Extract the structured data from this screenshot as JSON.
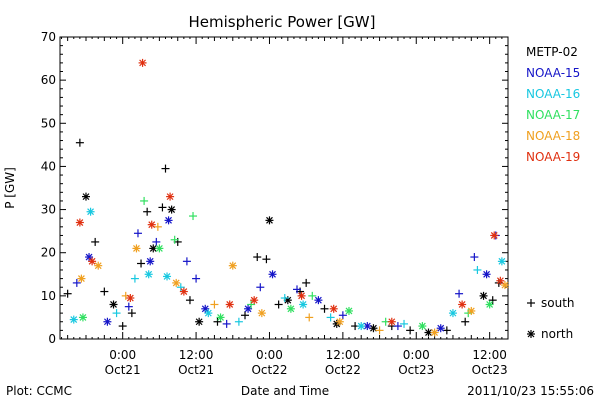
{
  "chart_data": {
    "type": "scatter",
    "title": "Hemispheric Power [GW]",
    "xlabel": "Date and Time",
    "ylabel": "P [GW]",
    "ylim": [
      0,
      70
    ],
    "yticks": [
      0,
      10,
      20,
      30,
      40,
      50,
      60,
      70
    ],
    "xlim": [
      "2011-10-20 13:45",
      "2011-10-23 15:00"
    ],
    "xticks": [
      {
        "time": "2011-10-21 00:00",
        "label1": "0:00",
        "label2": "Oct21"
      },
      {
        "time": "2011-10-21 12:00",
        "label1": "12:00",
        "label2": "Oct21"
      },
      {
        "time": "2011-10-22 00:00",
        "label1": "0:00",
        "label2": "Oct22"
      },
      {
        "time": "2011-10-22 12:00",
        "label1": "12:00",
        "label2": "Oct22"
      },
      {
        "time": "2011-10-23 00:00",
        "label1": "0:00",
        "label2": "Oct23"
      },
      {
        "time": "2011-10-23 12:00",
        "label1": "12:00",
        "label2": "Oct23"
      }
    ],
    "marker_legend": [
      {
        "symbol": "+",
        "label": "south"
      },
      {
        "symbol": "*",
        "label": "north"
      }
    ],
    "series": [
      {
        "name": "METP-02",
        "color": "#000000",
        "points": [
          {
            "t": "2011-10-20 15:00",
            "y": 10.5,
            "m": "+"
          },
          {
            "t": "2011-10-20 17:00",
            "y": 45.5,
            "m": "+"
          },
          {
            "t": "2011-10-20 18:00",
            "y": 33,
            "m": "*"
          },
          {
            "t": "2011-10-20 19:30",
            "y": 22.5,
            "m": "+"
          },
          {
            "t": "2011-10-20 21:00",
            "y": 11,
            "m": "+"
          },
          {
            "t": "2011-10-20 22:30",
            "y": 8,
            "m": "*"
          },
          {
            "t": "2011-10-21 00:00",
            "y": 3,
            "m": "+"
          },
          {
            "t": "2011-10-21 01:30",
            "y": 6,
            "m": "+"
          },
          {
            "t": "2011-10-21 03:00",
            "y": 17.5,
            "m": "+"
          },
          {
            "t": "2011-10-21 04:00",
            "y": 29.5,
            "m": "+"
          },
          {
            "t": "2011-10-21 05:00",
            "y": 21,
            "m": "*"
          },
          {
            "t": "2011-10-21 06:30",
            "y": 30.5,
            "m": "+"
          },
          {
            "t": "2011-10-21 07:00",
            "y": 39.5,
            "m": "+"
          },
          {
            "t": "2011-10-21 08:00",
            "y": 30,
            "m": "*"
          },
          {
            "t": "2011-10-21 09:00",
            "y": 22.5,
            "m": "+"
          },
          {
            "t": "2011-10-21 11:00",
            "y": 9,
            "m": "+"
          },
          {
            "t": "2011-10-21 12:30",
            "y": 4,
            "m": "*"
          },
          {
            "t": "2011-10-21 15:30",
            "y": 4,
            "m": "+"
          },
          {
            "t": "2011-10-21 20:00",
            "y": 5.5,
            "m": "+"
          },
          {
            "t": "2011-10-21 22:00",
            "y": 19,
            "m": "+"
          },
          {
            "t": "2011-10-21 23:30",
            "y": 18.5,
            "m": "+"
          },
          {
            "t": "2011-10-22 00:00",
            "y": 27.5,
            "m": "*"
          },
          {
            "t": "2011-10-22 01:30",
            "y": 8,
            "m": "+"
          },
          {
            "t": "2011-10-22 03:00",
            "y": 9,
            "m": "*"
          },
          {
            "t": "2011-10-22 05:00",
            "y": 11,
            "m": "+"
          },
          {
            "t": "2011-10-22 06:00",
            "y": 13,
            "m": "+"
          },
          {
            "t": "2011-10-22 09:00",
            "y": 7,
            "m": "+"
          },
          {
            "t": "2011-10-22 11:00",
            "y": 3.5,
            "m": "*"
          },
          {
            "t": "2011-10-22 14:00",
            "y": 3,
            "m": "+"
          },
          {
            "t": "2011-10-22 17:00",
            "y": 2.5,
            "m": "*"
          },
          {
            "t": "2011-10-22 20:00",
            "y": 3,
            "m": "+"
          },
          {
            "t": "2011-10-22 23:00",
            "y": 2,
            "m": "+"
          },
          {
            "t": "2011-10-23 02:00",
            "y": 1.5,
            "m": "*"
          },
          {
            "t": "2011-10-23 05:00",
            "y": 2,
            "m": "+"
          },
          {
            "t": "2011-10-23 08:00",
            "y": 4,
            "m": "+"
          },
          {
            "t": "2011-10-23 11:00",
            "y": 10,
            "m": "*"
          },
          {
            "t": "2011-10-23 12:30",
            "y": 9,
            "m": "+"
          },
          {
            "t": "2011-10-23 13:30",
            "y": 13,
            "m": "+"
          }
        ]
      },
      {
        "name": "NOAA-15",
        "color": "#1515c8",
        "points": [
          {
            "t": "2011-10-20 16:30",
            "y": 13,
            "m": "+"
          },
          {
            "t": "2011-10-20 18:30",
            "y": 19,
            "m": "*"
          },
          {
            "t": "2011-10-20 21:30",
            "y": 4,
            "m": "*"
          },
          {
            "t": "2011-10-21 01:00",
            "y": 7.5,
            "m": "+"
          },
          {
            "t": "2011-10-21 02:30",
            "y": 24.5,
            "m": "+"
          },
          {
            "t": "2011-10-21 04:30",
            "y": 18,
            "m": "*"
          },
          {
            "t": "2011-10-21 05:30",
            "y": 22.5,
            "m": "+"
          },
          {
            "t": "2011-10-21 07:30",
            "y": 27.5,
            "m": "*"
          },
          {
            "t": "2011-10-21 10:30",
            "y": 18,
            "m": "+"
          },
          {
            "t": "2011-10-21 12:00",
            "y": 14,
            "m": "+"
          },
          {
            "t": "2011-10-21 13:30",
            "y": 7,
            "m": "*"
          },
          {
            "t": "2011-10-21 17:00",
            "y": 3.5,
            "m": "+"
          },
          {
            "t": "2011-10-21 20:30",
            "y": 7,
            "m": "*"
          },
          {
            "t": "2011-10-21 22:30",
            "y": 12,
            "m": "+"
          },
          {
            "t": "2011-10-22 00:30",
            "y": 15,
            "m": "*"
          },
          {
            "t": "2011-10-22 04:30",
            "y": 11.5,
            "m": "+"
          },
          {
            "t": "2011-10-22 08:00",
            "y": 9,
            "m": "*"
          },
          {
            "t": "2011-10-22 12:00",
            "y": 5.5,
            "m": "+"
          },
          {
            "t": "2011-10-22 16:00",
            "y": 3,
            "m": "*"
          },
          {
            "t": "2011-10-22 21:00",
            "y": 3,
            "m": "+"
          },
          {
            "t": "2011-10-23 04:00",
            "y": 2.5,
            "m": "*"
          },
          {
            "t": "2011-10-23 07:00",
            "y": 10.5,
            "m": "+"
          },
          {
            "t": "2011-10-23 09:30",
            "y": 19,
            "m": "+"
          },
          {
            "t": "2011-10-23 11:30",
            "y": 15,
            "m": "*"
          },
          {
            "t": "2011-10-23 13:00",
            "y": 24,
            "m": "+"
          }
        ]
      },
      {
        "name": "NOAA-16",
        "color": "#18c8e0",
        "points": [
          {
            "t": "2011-10-20 16:00",
            "y": 4.5,
            "m": "*"
          },
          {
            "t": "2011-10-20 18:45",
            "y": 29.5,
            "m": "*"
          },
          {
            "t": "2011-10-20 23:00",
            "y": 6,
            "m": "+"
          },
          {
            "t": "2011-10-21 02:00",
            "y": 14,
            "m": "+"
          },
          {
            "t": "2011-10-21 04:15",
            "y": 15,
            "m": "*"
          },
          {
            "t": "2011-10-21 07:15",
            "y": 14.5,
            "m": "*"
          },
          {
            "t": "2011-10-21 09:30",
            "y": 12,
            "m": "+"
          },
          {
            "t": "2011-10-21 14:00",
            "y": 6,
            "m": "*"
          },
          {
            "t": "2011-10-21 19:00",
            "y": 4,
            "m": "+"
          },
          {
            "t": "2011-10-22 02:30",
            "y": 9.5,
            "m": "+"
          },
          {
            "t": "2011-10-22 05:30",
            "y": 8,
            "m": "*"
          },
          {
            "t": "2011-10-22 10:00",
            "y": 5,
            "m": "+"
          },
          {
            "t": "2011-10-22 15:00",
            "y": 3,
            "m": "*"
          },
          {
            "t": "2011-10-22 22:00",
            "y": 3.5,
            "m": "+"
          },
          {
            "t": "2011-10-23 06:00",
            "y": 6,
            "m": "*"
          },
          {
            "t": "2011-10-23 10:00",
            "y": 16,
            "m": "+"
          },
          {
            "t": "2011-10-23 14:00",
            "y": 18,
            "m": "*"
          }
        ]
      },
      {
        "name": "NOAA-17",
        "color": "#30e060",
        "points": [
          {
            "t": "2011-10-20 17:30",
            "y": 5,
            "m": "*"
          },
          {
            "t": "2011-10-21 03:30",
            "y": 32,
            "m": "+"
          },
          {
            "t": "2011-10-21 06:00",
            "y": 21,
            "m": "*"
          },
          {
            "t": "2011-10-21 08:30",
            "y": 23,
            "m": "+"
          },
          {
            "t": "2011-10-21 11:30",
            "y": 28.5,
            "m": "+"
          },
          {
            "t": "2011-10-21 16:00",
            "y": 5,
            "m": "*"
          },
          {
            "t": "2011-10-21 21:00",
            "y": 8,
            "m": "+"
          },
          {
            "t": "2011-10-22 03:30",
            "y": 7,
            "m": "*"
          },
          {
            "t": "2011-10-22 07:00",
            "y": 10,
            "m": "+"
          },
          {
            "t": "2011-10-22 13:00",
            "y": 6.5,
            "m": "*"
          },
          {
            "t": "2011-10-22 19:00",
            "y": 4,
            "m": "+"
          },
          {
            "t": "2011-10-23 01:00",
            "y": 3,
            "m": "*"
          },
          {
            "t": "2011-10-23 08:30",
            "y": 6,
            "m": "+"
          },
          {
            "t": "2011-10-23 12:00",
            "y": 8,
            "m": "*"
          }
        ]
      },
      {
        "name": "NOAA-18",
        "color": "#f0a020",
        "points": [
          {
            "t": "2011-10-20 17:15",
            "y": 14,
            "m": "*"
          },
          {
            "t": "2011-10-20 20:00",
            "y": 17,
            "m": "*"
          },
          {
            "t": "2011-10-21 00:30",
            "y": 10,
            "m": "+"
          },
          {
            "t": "2011-10-21 02:15",
            "y": 21,
            "m": "*"
          },
          {
            "t": "2011-10-21 05:45",
            "y": 26,
            "m": "+"
          },
          {
            "t": "2011-10-21 08:45",
            "y": 13,
            "m": "*"
          },
          {
            "t": "2011-10-21 15:00",
            "y": 8,
            "m": "+"
          },
          {
            "t": "2011-10-21 18:00",
            "y": 17,
            "m": "*"
          },
          {
            "t": "2011-10-21 22:45",
            "y": 6,
            "m": "*"
          },
          {
            "t": "2011-10-22 06:30",
            "y": 5,
            "m": "+"
          },
          {
            "t": "2011-10-22 11:30",
            "y": 4,
            "m": "*"
          },
          {
            "t": "2011-10-22 18:00",
            "y": 2,
            "m": "+"
          },
          {
            "t": "2011-10-23 03:00",
            "y": 1.5,
            "m": "*"
          },
          {
            "t": "2011-10-23 09:00",
            "y": 6.5,
            "m": "*"
          },
          {
            "t": "2011-10-23 14:30",
            "y": 12.5,
            "m": "*"
          }
        ]
      },
      {
        "name": "NOAA-19",
        "color": "#e03010",
        "points": [
          {
            "t": "2011-10-20 17:00",
            "y": 27,
            "m": "*"
          },
          {
            "t": "2011-10-20 19:00",
            "y": 18,
            "m": "*"
          },
          {
            "t": "2011-10-21 01:15",
            "y": 9.5,
            "m": "*"
          },
          {
            "t": "2011-10-21 03:15",
            "y": 64,
            "m": "*"
          },
          {
            "t": "2011-10-21 04:45",
            "y": 26.5,
            "m": "*"
          },
          {
            "t": "2011-10-21 07:45",
            "y": 33,
            "m": "*"
          },
          {
            "t": "2011-10-21 10:00",
            "y": 11,
            "m": "*"
          },
          {
            "t": "2011-10-21 17:30",
            "y": 8,
            "m": "*"
          },
          {
            "t": "2011-10-21 21:30",
            "y": 9,
            "m": "*"
          },
          {
            "t": "2011-10-22 05:15",
            "y": 10,
            "m": "*"
          },
          {
            "t": "2011-10-22 10:30",
            "y": 7,
            "m": "*"
          },
          {
            "t": "2011-10-22 20:00",
            "y": 4,
            "m": "*"
          },
          {
            "t": "2011-10-23 07:30",
            "y": 8,
            "m": "*"
          },
          {
            "t": "2011-10-23 12:45",
            "y": 24,
            "m": "*"
          },
          {
            "t": "2011-10-23 13:45",
            "y": 13.5,
            "m": "*"
          }
        ]
      }
    ]
  },
  "footer": {
    "plot_credit": "Plot: CCMC",
    "timestamp": "2011/10/23 15:55:06"
  }
}
